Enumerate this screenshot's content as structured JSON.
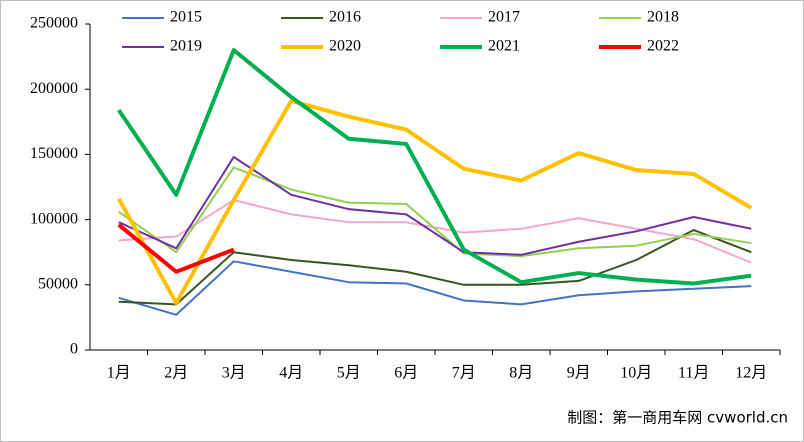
{
  "chart_data": {
    "type": "line",
    "categories": [
      "1月",
      "2月",
      "3月",
      "4月",
      "5月",
      "6月",
      "7月",
      "8月",
      "9月",
      "10月",
      "11月",
      "12月"
    ],
    "series": [
      {
        "name": "2015",
        "color": "#4472c4",
        "width": 2,
        "values": [
          40000,
          27000,
          68000,
          60000,
          52000,
          51000,
          38000,
          35000,
          42000,
          45000,
          47000,
          49000
        ]
      },
      {
        "name": "2016",
        "color": "#375623",
        "width": 2,
        "values": [
          37000,
          35000,
          75000,
          69000,
          65000,
          60000,
          50000,
          50000,
          53000,
          69000,
          92000,
          75000
        ]
      },
      {
        "name": "2017",
        "color": "#f4a6cf",
        "width": 2,
        "values": [
          84000,
          87000,
          115000,
          104000,
          98000,
          98000,
          90000,
          93000,
          101000,
          93000,
          85000,
          67000
        ]
      },
      {
        "name": "2018",
        "color": "#92d050",
        "width": 2,
        "values": [
          106000,
          75000,
          140000,
          123000,
          113000,
          112000,
          74000,
          72000,
          78000,
          80000,
          89000,
          82000
        ]
      },
      {
        "name": "2019",
        "color": "#7030a0",
        "width": 2,
        "values": [
          98000,
          78000,
          148000,
          119000,
          108000,
          104000,
          75000,
          73000,
          83000,
          91000,
          102000,
          93000
        ]
      },
      {
        "name": "2020",
        "color": "#ffc000",
        "width": 4,
        "values": [
          116000,
          36000,
          115000,
          191000,
          179000,
          169000,
          139000,
          130000,
          151000,
          138000,
          135000,
          109000
        ]
      },
      {
        "name": "2021",
        "color": "#00b050",
        "width": 4,
        "values": [
          184000,
          119000,
          230000,
          194000,
          162000,
          158000,
          77000,
          52000,
          59000,
          54000,
          51000,
          57000
        ]
      },
      {
        "name": "2022",
        "color": "#ff0000",
        "width": 4,
        "values": [
          96000,
          60000,
          77000,
          null,
          null,
          null,
          null,
          null,
          null,
          null,
          null,
          null
        ]
      }
    ],
    "ylim": [
      0,
      250000
    ],
    "yticks": [
      0,
      50000,
      100000,
      150000,
      200000,
      250000
    ],
    "source": "制图：第一商用车网 cvworld.cn"
  }
}
